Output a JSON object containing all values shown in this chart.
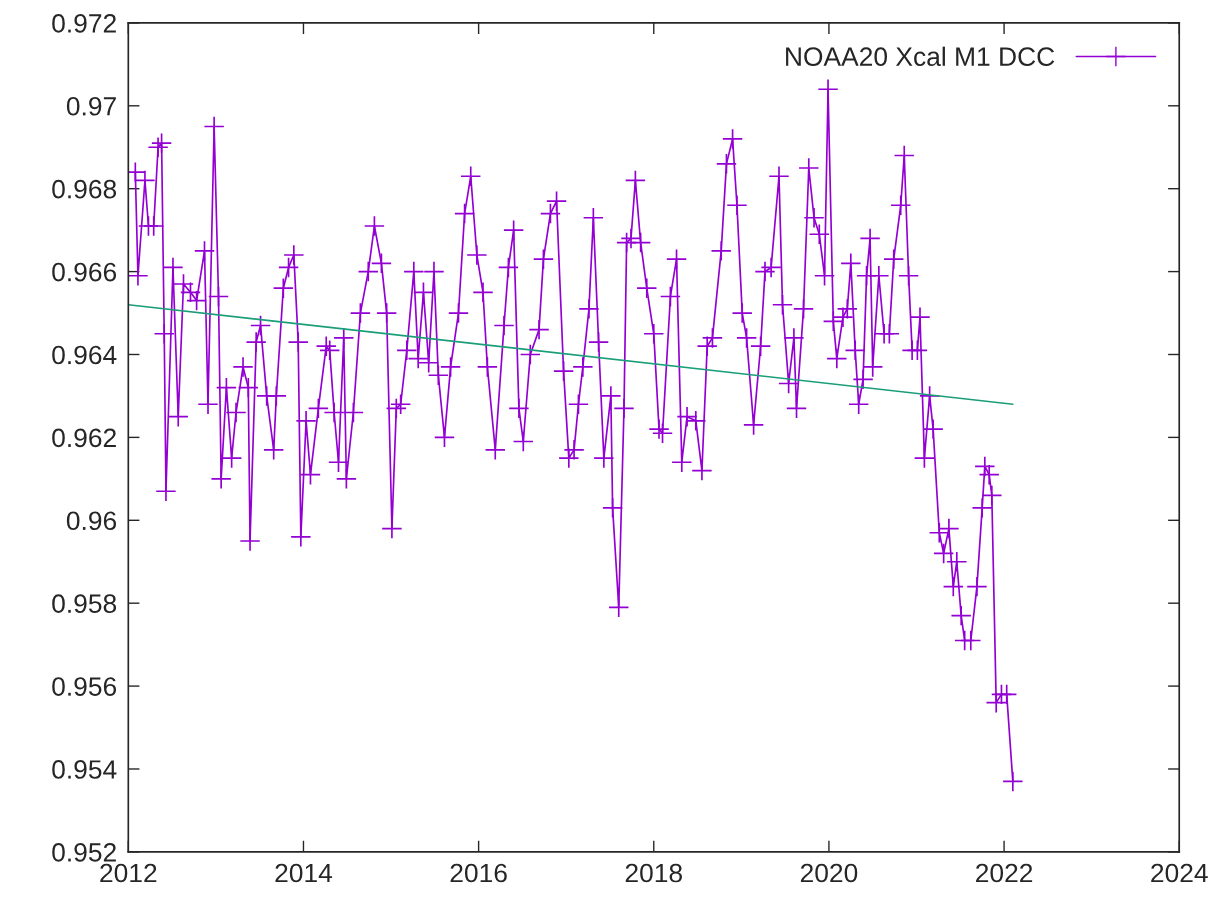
{
  "chart_data": {
    "type": "line",
    "xlim": [
      2012,
      2024
    ],
    "xticks": [
      2012,
      2014,
      2016,
      2018,
      2020,
      2022,
      2024
    ],
    "ylim": [
      0.952,
      0.972
    ],
    "yticks": [
      0.952,
      0.954,
      0.956,
      0.958,
      0.96,
      0.962,
      0.964,
      0.966,
      0.968,
      0.97,
      0.972
    ],
    "grid": false,
    "legend": "top right",
    "series": [
      {
        "name": "NOAA20 Xcal M1 DCC",
        "color": "#9400d3",
        "marker": "cross",
        "x": [
          2012.08,
          2012.11,
          2012.19,
          2012.23,
          2012.29,
          2012.34,
          2012.38,
          2012.41,
          2012.43,
          2012.51,
          2012.57,
          2012.63,
          2012.71,
          2012.78,
          2012.87,
          2012.91,
          2012.98,
          2013.03,
          2013.06,
          2013.12,
          2013.18,
          2013.23,
          2013.31,
          2013.37,
          2013.39,
          2013.46,
          2013.51,
          2013.58,
          2013.66,
          2013.69,
          2013.77,
          2013.83,
          2013.89,
          2013.94,
          2013.97,
          2014.03,
          2014.08,
          2014.17,
          2014.26,
          2014.3,
          2014.35,
          2014.4,
          2014.46,
          2014.49,
          2014.57,
          2014.65,
          2014.74,
          2014.81,
          2014.89,
          2014.95,
          2015.01,
          2015.06,
          2015.11,
          2015.18,
          2015.26,
          2015.31,
          2015.37,
          2015.43,
          2015.49,
          2015.54,
          2015.61,
          2015.68,
          2015.77,
          2015.84,
          2015.91,
          2015.98,
          2016.05,
          2016.1,
          2016.19,
          2016.29,
          2016.34,
          2016.4,
          2016.46,
          2016.51,
          2016.59,
          2016.69,
          2016.74,
          2016.82,
          2016.89,
          2016.97,
          2017.03,
          2017.09,
          2017.14,
          2017.19,
          2017.26,
          2017.31,
          2017.37,
          2017.43,
          2017.51,
          2017.53,
          2017.6,
          2017.66,
          2017.69,
          2017.74,
          2017.79,
          2017.85,
          2017.92,
          2018.0,
          2018.06,
          2018.1,
          2018.19,
          2018.26,
          2018.32,
          2018.38,
          2018.48,
          2018.55,
          2018.61,
          2018.67,
          2018.77,
          2018.83,
          2018.9,
          2018.95,
          2019.01,
          2019.06,
          2019.14,
          2019.22,
          2019.27,
          2019.34,
          2019.43,
          2019.47,
          2019.54,
          2019.6,
          2019.63,
          2019.71,
          2019.77,
          2019.83,
          2019.89,
          2019.95,
          2019.99,
          2020.05,
          2020.09,
          2020.16,
          2020.21,
          2020.25,
          2020.3,
          2020.34,
          2020.39,
          2020.43,
          2020.47,
          2020.5,
          2020.57,
          2020.63,
          2020.69,
          2020.74,
          2020.82,
          2020.86,
          2020.91,
          2020.95,
          2021.01,
          2021.04,
          2021.09,
          2021.15,
          2021.19,
          2021.26,
          2021.31,
          2021.37,
          2021.42,
          2021.46,
          2021.51,
          2021.55,
          2021.62,
          2021.69,
          2021.75,
          2021.78,
          2021.83,
          2021.86,
          2021.91,
          2021.97,
          2022.03,
          2022.1
        ],
        "values": [
          0.9684,
          0.9659,
          0.9682,
          0.9671,
          0.9671,
          0.969,
          0.9691,
          0.9645,
          0.9607,
          0.9661,
          0.9625,
          0.9657,
          0.9655,
          0.9653,
          0.9665,
          0.9628,
          0.9695,
          0.9654,
          0.961,
          0.9632,
          0.9615,
          0.9626,
          0.9637,
          0.9632,
          0.9595,
          0.9643,
          0.9647,
          0.963,
          0.9617,
          0.963,
          0.9656,
          0.9661,
          0.9664,
          0.9643,
          0.9596,
          0.9624,
          0.9611,
          0.9627,
          0.9642,
          0.9641,
          0.9626,
          0.9614,
          0.9644,
          0.961,
          0.9626,
          0.965,
          0.966,
          0.9671,
          0.9662,
          0.965,
          0.9598,
          0.9627,
          0.9628,
          0.9641,
          0.966,
          0.9639,
          0.9655,
          0.9638,
          0.966,
          0.9635,
          0.962,
          0.9637,
          0.965,
          0.9674,
          0.9683,
          0.9664,
          0.9655,
          0.9637,
          0.9617,
          0.9647,
          0.9661,
          0.967,
          0.9627,
          0.9619,
          0.964,
          0.9646,
          0.9663,
          0.9674,
          0.9677,
          0.9636,
          0.9615,
          0.9617,
          0.9628,
          0.9637,
          0.9651,
          0.9673,
          0.9643,
          0.9615,
          0.963,
          0.9603,
          0.9579,
          0.9627,
          0.9667,
          0.9668,
          0.9682,
          0.9667,
          0.9656,
          0.9645,
          0.9622,
          0.9621,
          0.9654,
          0.9663,
          0.9614,
          0.9625,
          0.9624,
          0.9612,
          0.9642,
          0.9644,
          0.9665,
          0.9686,
          0.9692,
          0.9676,
          0.965,
          0.9644,
          0.9623,
          0.9642,
          0.966,
          0.9661,
          0.9683,
          0.9652,
          0.9633,
          0.9644,
          0.9627,
          0.9651,
          0.9685,
          0.9673,
          0.9669,
          0.9659,
          0.9704,
          0.9648,
          0.9639,
          0.9649,
          0.9651,
          0.9662,
          0.9641,
          0.9628,
          0.9634,
          0.9659,
          0.9668,
          0.9637,
          0.9659,
          0.9645,
          0.9645,
          0.9663,
          0.9676,
          0.9688,
          0.9659,
          0.9641,
          0.9641,
          0.9649,
          0.9615,
          0.963,
          0.9622,
          0.9597,
          0.9592,
          0.9598,
          0.9584,
          0.959,
          0.9577,
          0.9571,
          0.9571,
          0.9584,
          0.9603,
          0.9613,
          0.9611,
          0.9606,
          0.9556,
          0.9558,
          0.9558,
          0.9537
        ]
      },
      {
        "color": "#1a9e77",
        "marker": "none",
        "x": [
          2012.0,
          2022.1
        ],
        "values": [
          0.9652,
          0.9628
        ]
      }
    ]
  }
}
